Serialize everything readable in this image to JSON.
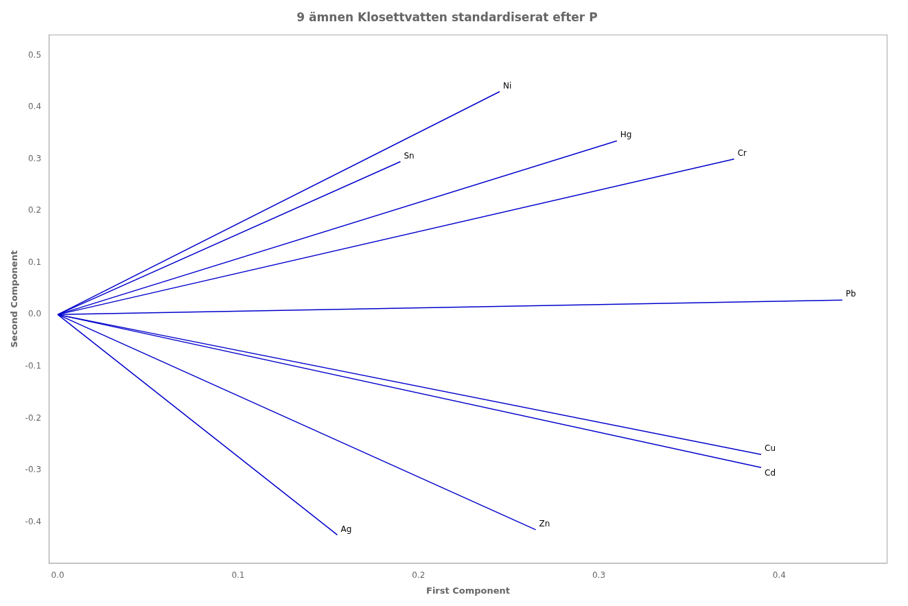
{
  "chart_data": {
    "type": "line",
    "title": "9 ämnen Klosettvatten standardiserat efter P",
    "xlabel": "First Component",
    "ylabel": "Second Component",
    "color": "#0000CC",
    "grid": false,
    "xlim": [
      -0.005,
      0.46
    ],
    "ylim": [
      -0.48,
      0.54
    ],
    "xticks": [
      {
        "value": 0.0,
        "label": "0.0"
      },
      0.1,
      0.2,
      0.3,
      0.4
    ],
    "yticks": [
      -0.4,
      -0.3,
      -0.2,
      -0.1,
      {
        "value": 0.0,
        "label": "0.0"
      },
      0.1,
      0.2,
      0.3,
      0.4,
      0.5
    ],
    "series": [
      {
        "name": "Ni",
        "x": [
          0,
          0.245
        ],
        "values": [
          0,
          0.43
        ]
      },
      {
        "name": "Sn",
        "x": [
          0,
          0.19
        ],
        "values": [
          0,
          0.295
        ]
      },
      {
        "name": "Hg",
        "x": [
          0,
          0.31
        ],
        "values": [
          0,
          0.335
        ]
      },
      {
        "name": "Cr",
        "x": [
          0,
          0.375
        ],
        "values": [
          0,
          0.3
        ]
      },
      {
        "name": "Pb",
        "x": [
          0,
          0.435
        ],
        "values": [
          0,
          0.028
        ]
      },
      {
        "name": "Cu",
        "x": [
          0,
          0.39
        ],
        "values": [
          0,
          -0.27
        ]
      },
      {
        "name": "Cd",
        "x": [
          0,
          0.39
        ],
        "values": [
          0,
          -0.295
        ]
      },
      {
        "name": "Zn",
        "x": [
          0,
          0.265
        ],
        "values": [
          0,
          -0.415
        ]
      },
      {
        "name": "Ag",
        "x": [
          0,
          0.155
        ],
        "values": [
          0,
          -0.425
        ]
      }
    ]
  }
}
